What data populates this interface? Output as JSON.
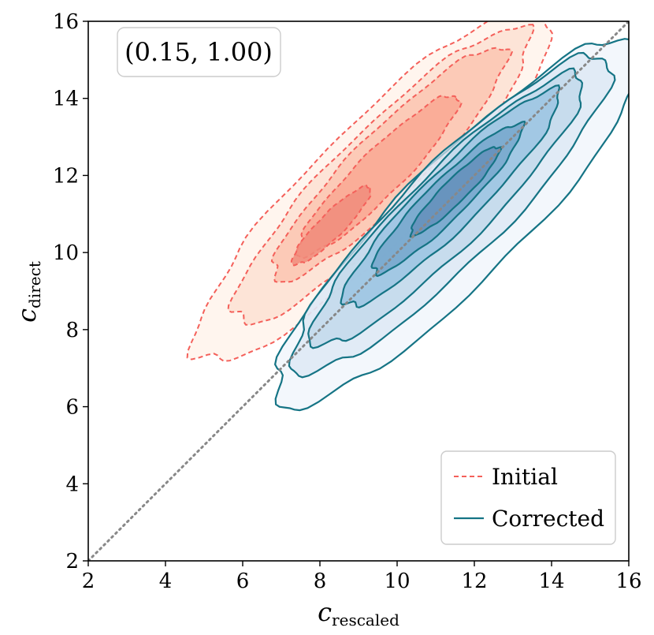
{
  "chart_data": {
    "type": "contour",
    "title": "",
    "xlabel": {
      "base": "c",
      "sub": "rescaled"
    },
    "ylabel": {
      "base": "c",
      "sub": "direct"
    },
    "xlim": [
      2,
      16
    ],
    "ylim": [
      2,
      16
    ],
    "xticks": [
      "2",
      "4",
      "6",
      "8",
      "10",
      "12",
      "14",
      "16"
    ],
    "yticks": [
      "2",
      "4",
      "6",
      "8",
      "10",
      "12",
      "14",
      "16"
    ],
    "annotation": "(0.15, 1.00)",
    "reference_line": {
      "from": [
        2,
        2
      ],
      "to": [
        16,
        16
      ],
      "style": "dotted",
      "color": "#888888"
    },
    "legend": {
      "position": "bottom-right"
    },
    "series": [
      {
        "name": "Initial",
        "line_style": "dashed",
        "line_color": "#f4605a",
        "fill_colors": [
          "#fff3eb",
          "#fde0d2",
          "#fcc6b2",
          "#f9a893",
          "#f08c7b"
        ],
        "levels": [
          {
            "center": [
              9.4,
              11.8
            ],
            "half_length": 6.4,
            "half_width": 1.5
          },
          {
            "center": [
              9.6,
              12.0
            ],
            "half_length": 5.3,
            "half_width": 1.18
          },
          {
            "center": [
              9.8,
              12.3
            ],
            "half_length": 4.2,
            "half_width": 0.88
          },
          {
            "center": [
              9.5,
              12.0
            ],
            "half_length": 2.9,
            "half_width": 0.58
          },
          {
            "center": [
              8.3,
              10.7
            ],
            "half_length": 1.4,
            "half_width": 0.32
          }
        ]
      },
      {
        "name": "Corrected",
        "line_style": "solid",
        "line_color": "#157485",
        "fill_colors": [
          "#eef4fb",
          "#d8e6f3",
          "#bcd5ea",
          "#93bfdf",
          "#6e9fc8",
          "#5f8ab7"
        ],
        "levels": [
          {
            "center": [
              11.6,
              10.8
            ],
            "half_length": 6.6,
            "half_width": 1.55
          },
          {
            "center": [
              11.4,
              11.0
            ],
            "half_length": 5.7,
            "half_width": 1.27
          },
          {
            "center": [
              11.3,
              11.1
            ],
            "half_length": 4.9,
            "half_width": 1.0
          },
          {
            "center": [
              11.4,
              11.4
            ],
            "half_length": 3.9,
            "half_width": 0.74
          },
          {
            "center": [
              11.3,
              11.4
            ],
            "half_length": 2.7,
            "half_width": 0.5
          },
          {
            "center": [
              11.5,
              11.6
            ],
            "half_length": 1.6,
            "half_width": 0.3
          }
        ]
      }
    ]
  }
}
